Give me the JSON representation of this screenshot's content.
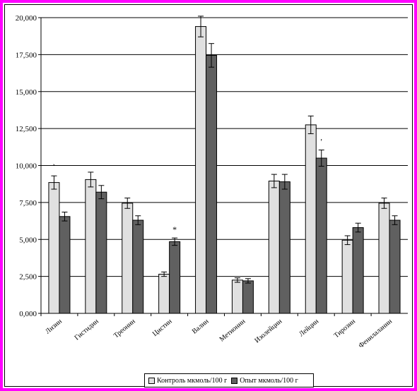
{
  "chart_data": {
    "type": "bar",
    "title": "",
    "xlabel": "",
    "ylabel": "",
    "ylim": [
      0,
      20
    ],
    "yticks": [
      "0,000",
      "2,500",
      "5,000",
      "7,500",
      "10,000",
      "12,500",
      "15,000",
      "17,500",
      "20,000"
    ],
    "grid": "horizontal",
    "legend": "bottom",
    "categories": [
      "Лизин",
      "Гистидин",
      "Треонин",
      "Цистин",
      "Валин",
      "Метионин",
      "Изолейцин",
      "Лейцин",
      "Тирозин",
      "Фенилаланин"
    ],
    "series": [
      {
        "name": "Контроль мкмоль/100 г",
        "color": "#e0e0e0",
        "values": [
          8.85,
          9.05,
          7.45,
          2.65,
          19.4,
          2.25,
          8.95,
          12.75,
          4.95,
          7.45
        ],
        "errors": [
          0.45,
          0.5,
          0.35,
          0.15,
          0.7,
          0.15,
          0.45,
          0.6,
          0.3,
          0.35
        ]
      },
      {
        "name": "Опыт мкмоль/100 г",
        "color": "#606060",
        "values": [
          6.55,
          8.2,
          6.3,
          4.85,
          17.45,
          2.2,
          8.9,
          10.5,
          5.8,
          6.3
        ],
        "errors": [
          0.3,
          0.45,
          0.3,
          0.25,
          0.8,
          0.15,
          0.5,
          0.55,
          0.3,
          0.3
        ]
      }
    ],
    "annotations": [
      {
        "category": "Лизин",
        "series": 0,
        "text": "`"
      },
      {
        "category": "Цистин",
        "series": 1,
        "text": "*"
      },
      {
        "category": "Лейцин",
        "series": 1,
        "text": "'"
      }
    ]
  }
}
